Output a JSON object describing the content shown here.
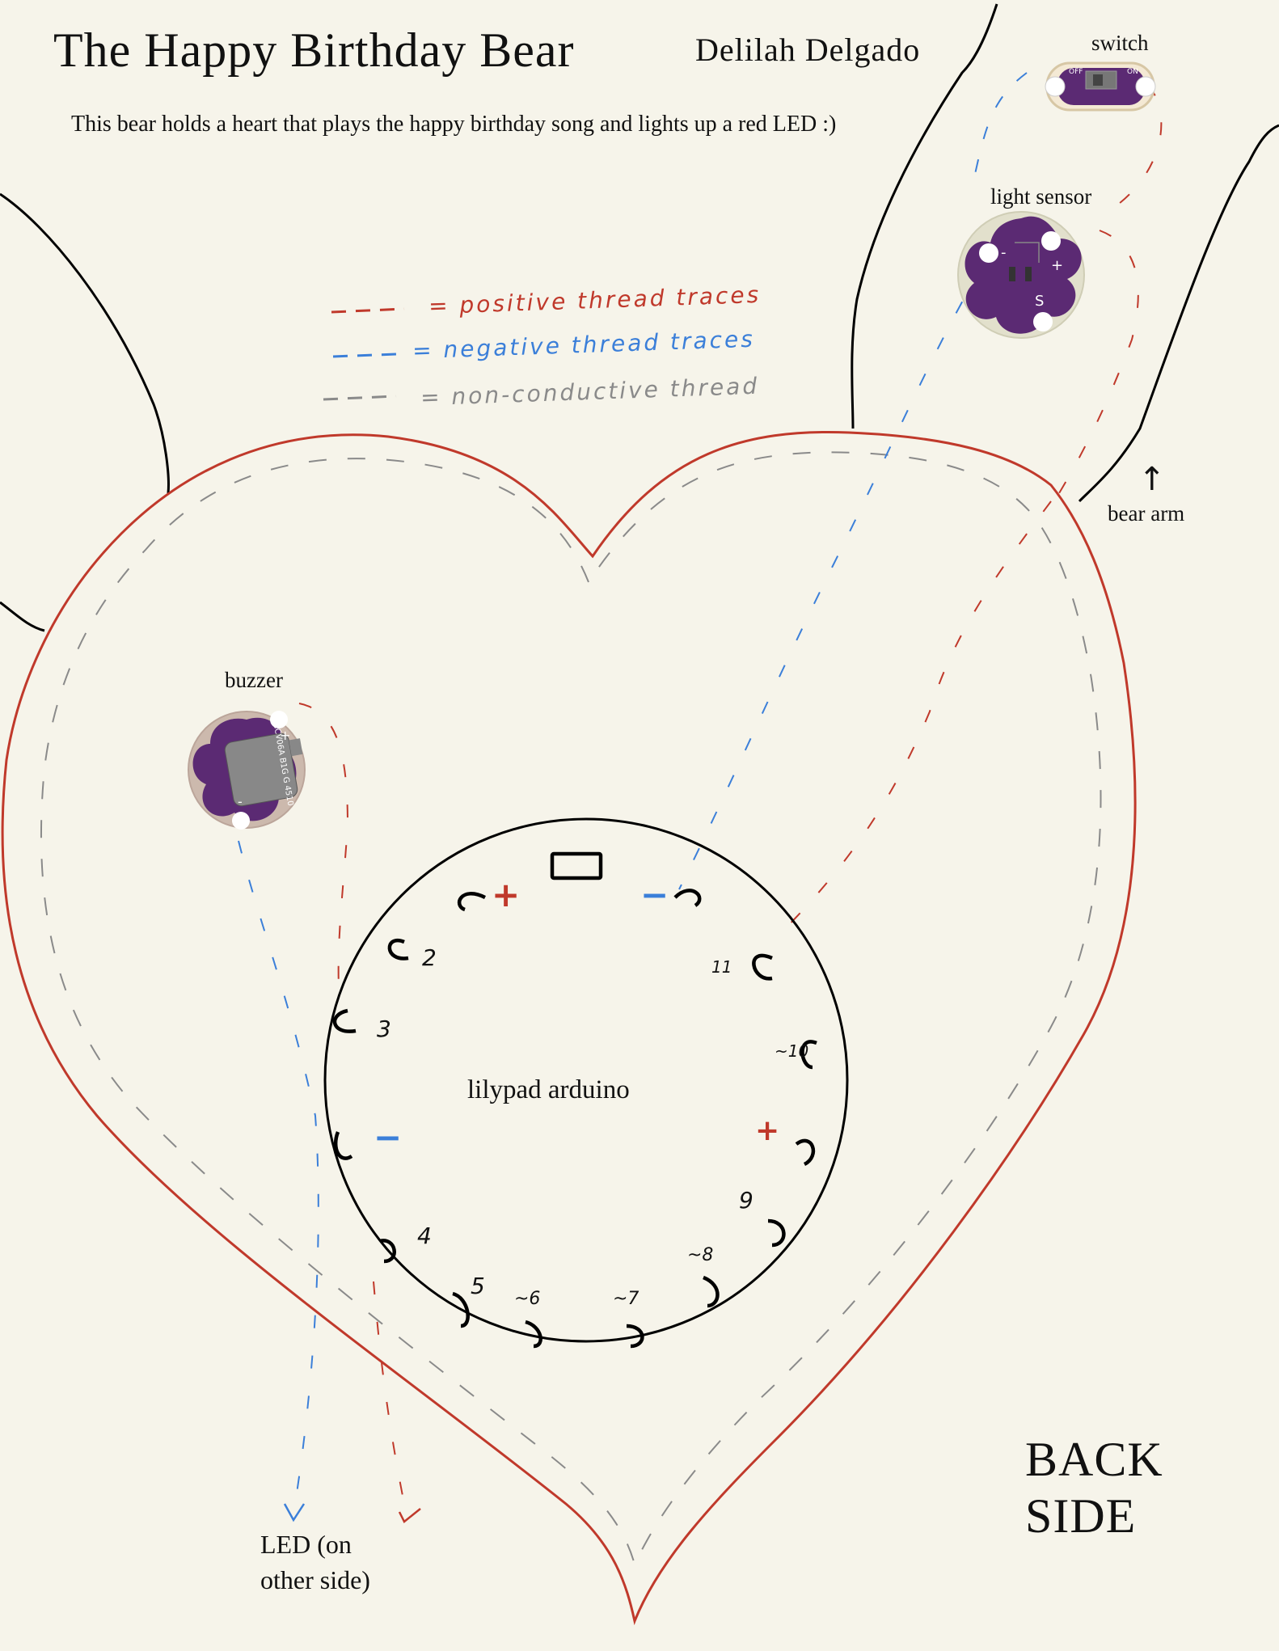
{
  "title": "The Happy Birthday Bear",
  "author": "Delilah Delgado",
  "description": "This bear holds a heart that plays the happy birthday song and lights up a red LED :)",
  "legend": {
    "positive": {
      "symbol": "- - -",
      "text": "= positive thread traces",
      "color": "#c0392b"
    },
    "negative": {
      "symbol": "- - -",
      "text": "= negative thread traces",
      "color": "#3b7fd9"
    },
    "nonconductive": {
      "symbol": "- - -",
      "text": "= non-conductive thread",
      "color": "#8a8a8a"
    }
  },
  "components": {
    "switch": {
      "label": "switch",
      "pcb_text": [
        "OFF",
        "ON"
      ]
    },
    "light_sensor": {
      "label": "light sensor",
      "pins": [
        "-",
        "+",
        "S"
      ]
    },
    "buzzer": {
      "label": "buzzer",
      "pins": [
        "+",
        "-"
      ],
      "part_code": "CCV06A B1G G 4510"
    },
    "arduino": {
      "label": "lilypad arduino"
    },
    "led": {
      "label_line1": "LED (on",
      "label_line2": "other side)"
    }
  },
  "arm_label": "bear arm",
  "arrow_up": "↑",
  "back_side": {
    "line1": "BACK",
    "line2": "SIDE"
  },
  "pins": {
    "plus_top": "+",
    "minus_top": "−",
    "p2": "2",
    "p3": "3",
    "minus_left": "−",
    "p4": "4",
    "p5": "5",
    "p6": "~6",
    "p7": "~7",
    "p8": "~8",
    "p9": "9",
    "plus_right": "+",
    "p10": "~10",
    "p11": "11"
  },
  "colors": {
    "positive": "#c0392b",
    "negative": "#3b7fd9",
    "nonconductive": "#8a8a8a",
    "heart": "#c0392b",
    "pcb": "#5b2a73",
    "background": "#f6f4ea"
  }
}
